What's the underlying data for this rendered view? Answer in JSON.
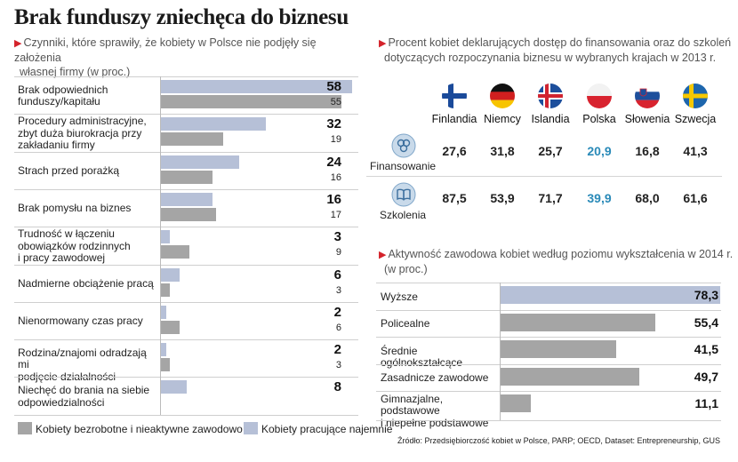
{
  "title": "Brak funduszy zniechęca do biznesu",
  "colors": {
    "dark": "#a5a5a5",
    "light": "#b6c0d7",
    "accent": "#d4232b",
    "poland": "#2a8ab8"
  },
  "left": {
    "subtitle_1": "Czynniki, które sprawiły, że kobiety w Polsce nie podjęły się założenia",
    "subtitle_2": "własnej firmy (w proc.)"
  },
  "legend": {
    "unemployed": "Kobiety bezrobotne i nieaktywne zawodowo",
    "employed": "Kobiety pracujące najemnie"
  },
  "right_top": {
    "subtitle_1": "Procent kobiet deklarujących dostęp do finansowania oraz do szkoleń",
    "subtitle_2": "dotyczących rozpoczynania biznesu w wybranych krajach w 2013 r.",
    "icons": [
      "coins-icon",
      "book-icon"
    ]
  },
  "right_bottom": {
    "subtitle_1": "Aktywność zawodowa kobiet według poziomu wykształcenia w 2014 r.",
    "subtitle_2": "(w proc.)"
  },
  "source": "Źródło: Przedsiębiorczość kobiet w Polsce, PARP; OECD, Dataset: Entrepreneurship, GUS",
  "chart_data": [
    {
      "type": "bar",
      "orientation": "horizontal",
      "categories": [
        [
          "Brak odpowiednich",
          "funduszy/kapitału"
        ],
        [
          "Procedury administracyjne,",
          "zbyt duża biurokracja przy",
          "zakładaniu firmy"
        ],
        [
          "Strach przed porażką"
        ],
        [
          "Brak pomysłu na biznes"
        ],
        [
          "Trudność w łączeniu",
          "obowiązków rodzinnych",
          "i pracy zawodowej"
        ],
        [
          "Nadmierne obciążenie pracą"
        ],
        [
          "Nienormowany czas pracy"
        ],
        [
          "Rodzina/znajomi odradzają mi",
          "podjęcie działalności"
        ],
        [
          "Niechęć do brania na siebie",
          "odpowiedzialności"
        ]
      ],
      "series": [
        {
          "name": "Kobiety pracujące najemnie",
          "values": [
            58,
            32,
            24,
            16,
            3,
            6,
            2,
            2,
            8
          ]
        },
        {
          "name": "Kobiety bezrobotne i nieaktywne zawodowo",
          "values": [
            55,
            19,
            16,
            17,
            9,
            3,
            6,
            3,
            null
          ]
        }
      ],
      "xlim": [
        0,
        60
      ]
    },
    {
      "type": "table",
      "columns": [
        "Finlandia",
        "Niemcy",
        "Islandia",
        "Polska",
        "Słowenia",
        "Szwecja"
      ],
      "rows": [
        {
          "label": "Finansowanie",
          "values": [
            "27,6",
            "31,8",
            "25,7",
            "20,9",
            "16,8",
            "41,3"
          ]
        },
        {
          "label": "Szkolenia",
          "values": [
            "87,5",
            "53,9",
            "71,7",
            "39,9",
            "68,0",
            "61,6"
          ]
        }
      ],
      "highlight_column": "Polska"
    },
    {
      "type": "bar",
      "orientation": "horizontal",
      "categories": [
        [
          "Wyższe"
        ],
        [
          "Policealne"
        ],
        [
          "Średnie ogólnokształcące"
        ],
        [
          "Zasadnicze zawodowe"
        ],
        [
          "Gimnazjalne, podstawowe",
          "i niepełne podstawowe"
        ]
      ],
      "values": [
        78.3,
        55.4,
        41.5,
        49.7,
        11.1
      ],
      "labels": [
        "78,3",
        "55,4",
        "41,5",
        "49,7",
        "11,1"
      ],
      "highlight_index": 0,
      "xlim": [
        0,
        78.3
      ]
    }
  ]
}
